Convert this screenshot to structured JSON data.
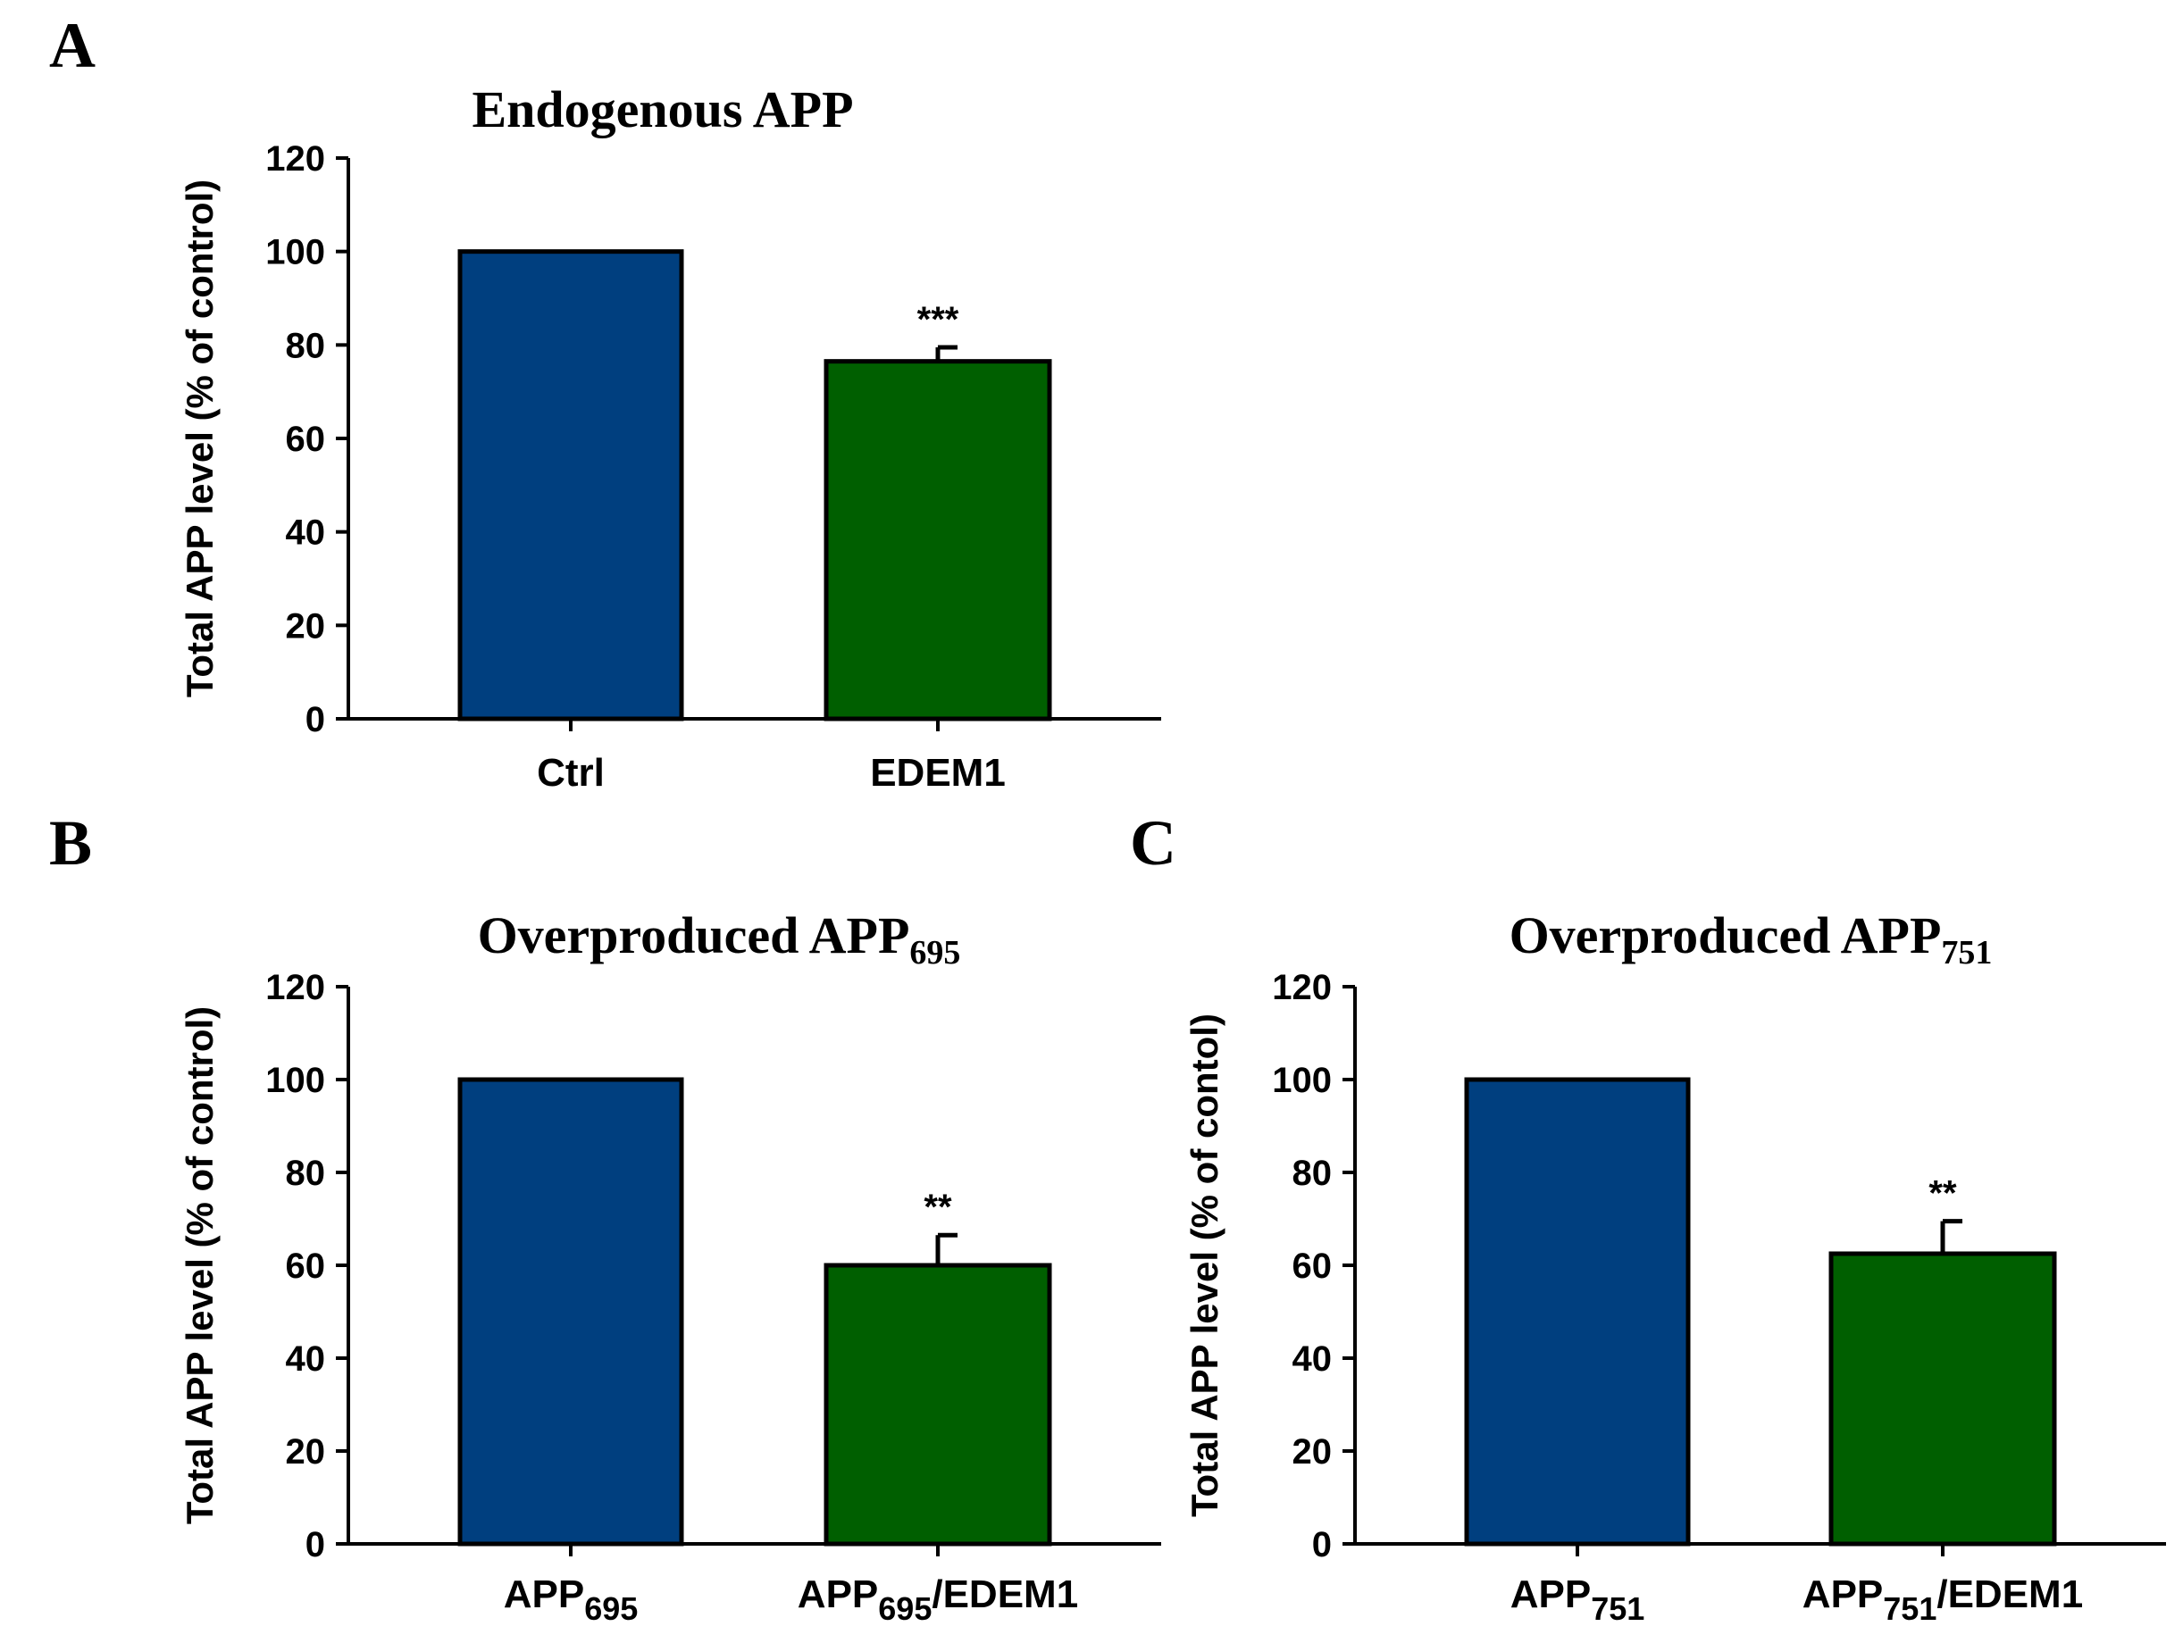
{
  "chart_data": [
    {
      "panel": "A",
      "type": "bar",
      "title": {
        "main": "Endogenous APP",
        "sub": ""
      },
      "ylabel": "Total APP level (% of control)",
      "ylim": [
        0,
        120
      ],
      "yticks": [
        0,
        20,
        40,
        60,
        80,
        100,
        120
      ],
      "categories": [
        {
          "main": "Ctrl",
          "sub": "",
          "suffix": ""
        },
        {
          "main": "EDEM1",
          "sub": "",
          "suffix": ""
        }
      ],
      "values": [
        100,
        76.5
      ],
      "errors": [
        0,
        3
      ],
      "significance": [
        "",
        "***"
      ],
      "colors": [
        "#003f7f",
        "#005f00"
      ]
    },
    {
      "panel": "B",
      "type": "bar",
      "title": {
        "main": "Overproduced APP",
        "sub": "695"
      },
      "ylabel": "Total APP level (% of control)",
      "ylim": [
        0,
        120
      ],
      "yticks": [
        0,
        20,
        40,
        60,
        80,
        100,
        120
      ],
      "categories": [
        {
          "main": "APP",
          "sub": "695",
          "suffix": ""
        },
        {
          "main": "APP",
          "sub": "695",
          "suffix": "/EDEM1"
        }
      ],
      "values": [
        100,
        60
      ],
      "errors": [
        0,
        6.5
      ],
      "significance": [
        "",
        "**"
      ],
      "colors": [
        "#003f7f",
        "#005f00"
      ]
    },
    {
      "panel": "C",
      "type": "bar",
      "title": {
        "main": "Overproduced APP",
        "sub": "751"
      },
      "ylabel": "Total APP level (% of contol)",
      "ylim": [
        0,
        120
      ],
      "yticks": [
        0,
        20,
        40,
        60,
        80,
        100,
        120
      ],
      "categories": [
        {
          "main": "APP",
          "sub": "751",
          "suffix": ""
        },
        {
          "main": "APP",
          "sub": "751",
          "suffix": "/EDEM1"
        }
      ],
      "values": [
        100,
        62.5
      ],
      "errors": [
        0,
        7
      ],
      "significance": [
        "",
        "**"
      ],
      "colors": [
        "#003f7f",
        "#005f00"
      ]
    }
  ]
}
